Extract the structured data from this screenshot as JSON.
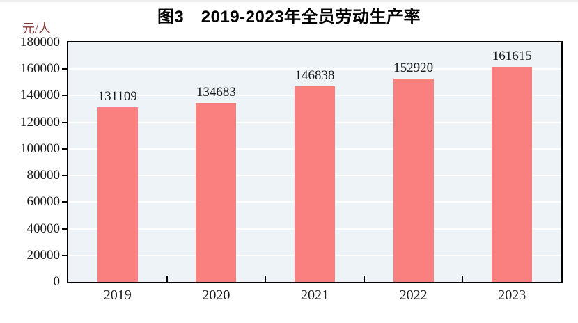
{
  "chart_data": {
    "type": "bar",
    "title": "图3　2019-2023年全员劳动生产率",
    "unit_label": "元/人",
    "categories": [
      "2019",
      "2020",
      "2021",
      "2022",
      "2023"
    ],
    "values": [
      131109,
      134683,
      146838,
      152920,
      161615
    ],
    "data_labels": [
      "131109",
      "134683",
      "146838",
      "152920",
      "161615"
    ],
    "xlabel": "",
    "ylabel": "元/人",
    "ylim": [
      0,
      180000
    ],
    "ytick_interval": 20000,
    "ytick_labels": [
      "0",
      "20000",
      "40000",
      "60000",
      "80000",
      "100000",
      "120000",
      "140000",
      "160000",
      "180000"
    ],
    "grid": "horizontal",
    "legend": "none",
    "colors": {
      "bar": "#fa8080",
      "plot_bg": "#edf3f6",
      "gridline": "#ffffff",
      "axis": "#000000",
      "text": "#1a1a1a",
      "unit_label": "#8b3a3a"
    }
  }
}
